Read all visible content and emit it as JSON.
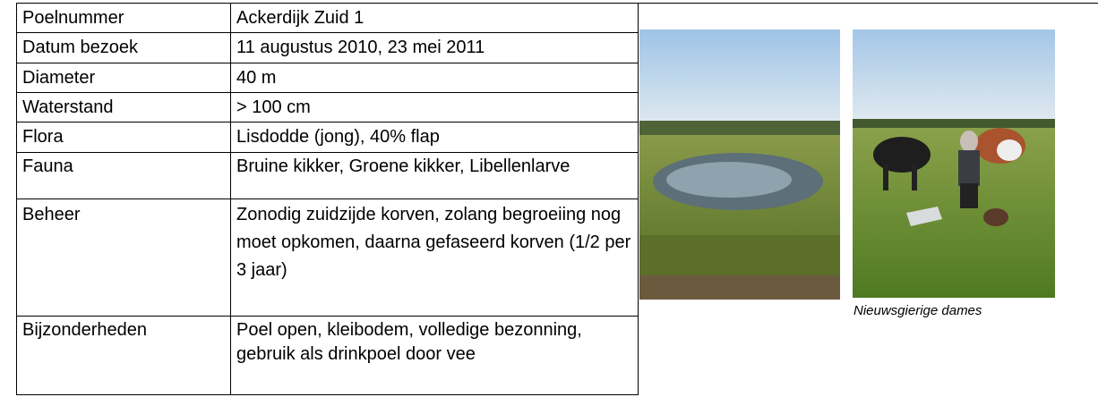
{
  "table": {
    "rows": [
      [
        "Poelnummer",
        "Ackerdijk Zuid 1"
      ],
      [
        "Datum bezoek",
        "11 augustus 2010, 23 mei 2011"
      ],
      [
        "Diameter",
        "40 m"
      ],
      [
        "Waterstand",
        "> 100 cm"
      ],
      [
        "Flora",
        "Lisdodde (jong), 40% flap"
      ],
      [
        "Fauna",
        "Bruine kikker, Groene kikker, Libellenlarve"
      ],
      [
        "Beheer",
        "Zonodig zuidzijde korven, zolang begroeiing nog moet opkomen, daarna gefaseerd korven (1/2 per 3 jaar)"
      ],
      [
        "Bijzonderheden",
        "Poel open, kleibodem, volledige bezonning, gebruik als drinkpoel door vee"
      ]
    ]
  },
  "photos": {
    "caption": "Nieuwsgierige dames"
  }
}
